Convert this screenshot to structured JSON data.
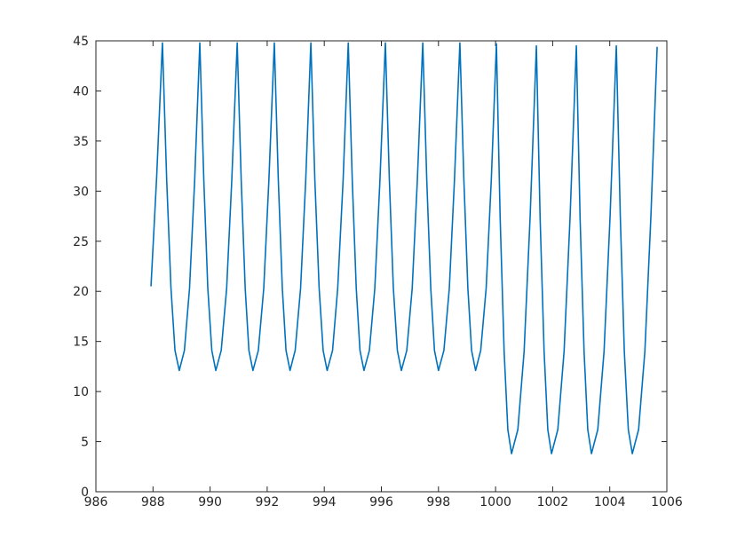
{
  "chart_data": {
    "type": "line",
    "color": "#0072bd",
    "xlim": [
      986,
      1006
    ],
    "xticks": [
      986,
      988,
      990,
      992,
      994,
      996,
      998,
      1000,
      1002,
      1004,
      1006
    ],
    "ylim": [
      0,
      45
    ],
    "yticks": [
      0,
      5,
      10,
      15,
      20,
      25,
      30,
      35,
      40,
      45
    ],
    "x": [
      987.93,
      988.13,
      988.33,
      988.48,
      988.63,
      988.77,
      988.92,
      989.1,
      989.28,
      989.46,
      989.64,
      989.78,
      989.92,
      990.06,
      990.2,
      990.39,
      990.58,
      990.76,
      990.95,
      991.09,
      991.23,
      991.36,
      991.5,
      991.69,
      991.88,
      992.06,
      992.25,
      992.39,
      992.53,
      992.66,
      992.8,
      992.98,
      993.17,
      993.35,
      993.53,
      993.67,
      993.82,
      993.96,
      994.1,
      994.29,
      994.47,
      994.66,
      994.84,
      994.98,
      995.12,
      995.25,
      995.39,
      995.58,
      995.77,
      995.95,
      996.14,
      996.28,
      996.42,
      996.56,
      996.7,
      996.89,
      997.08,
      997.26,
      997.45,
      997.59,
      997.73,
      997.86,
      998.0,
      998.19,
      998.38,
      998.56,
      998.75,
      998.89,
      999.03,
      999.16,
      999.3,
      999.48,
      999.67,
      999.85,
      1000.03,
      1000.16,
      1000.3,
      1000.43,
      1000.56,
      1000.78,
      1001.0,
      1001.21,
      1001.43,
      1001.56,
      1001.7,
      1001.83,
      1001.96,
      1002.18,
      1002.4,
      1002.61,
      1002.83,
      1002.96,
      1003.1,
      1003.23,
      1003.36,
      1003.58,
      1003.8,
      1004.01,
      1004.23,
      1004.37,
      1004.51,
      1004.65,
      1004.79,
      1005.01,
      1005.23,
      1005.44,
      1005.66
    ],
    "values": [
      20.5,
      31.5,
      44.8,
      31.1,
      20.3,
      14.1,
      12.1,
      14.1,
      20.3,
      31.1,
      44.8,
      31.1,
      20.3,
      14.1,
      12.1,
      14.1,
      20.3,
      31.1,
      44.8,
      31.1,
      20.3,
      14.1,
      12.1,
      14.1,
      20.3,
      31.1,
      44.8,
      31.1,
      20.3,
      14.1,
      12.1,
      14.1,
      20.3,
      31.1,
      44.8,
      31.1,
      20.3,
      14.1,
      12.1,
      14.1,
      20.3,
      31.1,
      44.8,
      31.1,
      20.3,
      14.1,
      12.1,
      14.1,
      20.3,
      31.1,
      44.8,
      31.1,
      20.3,
      14.1,
      12.1,
      14.1,
      20.3,
      31.1,
      44.8,
      31.1,
      20.3,
      14.1,
      12.1,
      14.1,
      20.3,
      31.1,
      44.8,
      31.1,
      20.3,
      14.1,
      12.1,
      14.1,
      20.3,
      31.1,
      44.7,
      27.4,
      14.0,
      6.2,
      3.8,
      6.2,
      14.0,
      27.4,
      44.5,
      27.4,
      14.0,
      6.2,
      3.8,
      6.2,
      14.0,
      27.4,
      44.5,
      27.4,
      14.0,
      6.2,
      3.8,
      6.2,
      14.0,
      27.4,
      44.5,
      27.4,
      14.0,
      6.2,
      3.8,
      6.2,
      14.0,
      27.4,
      44.4
    ]
  }
}
